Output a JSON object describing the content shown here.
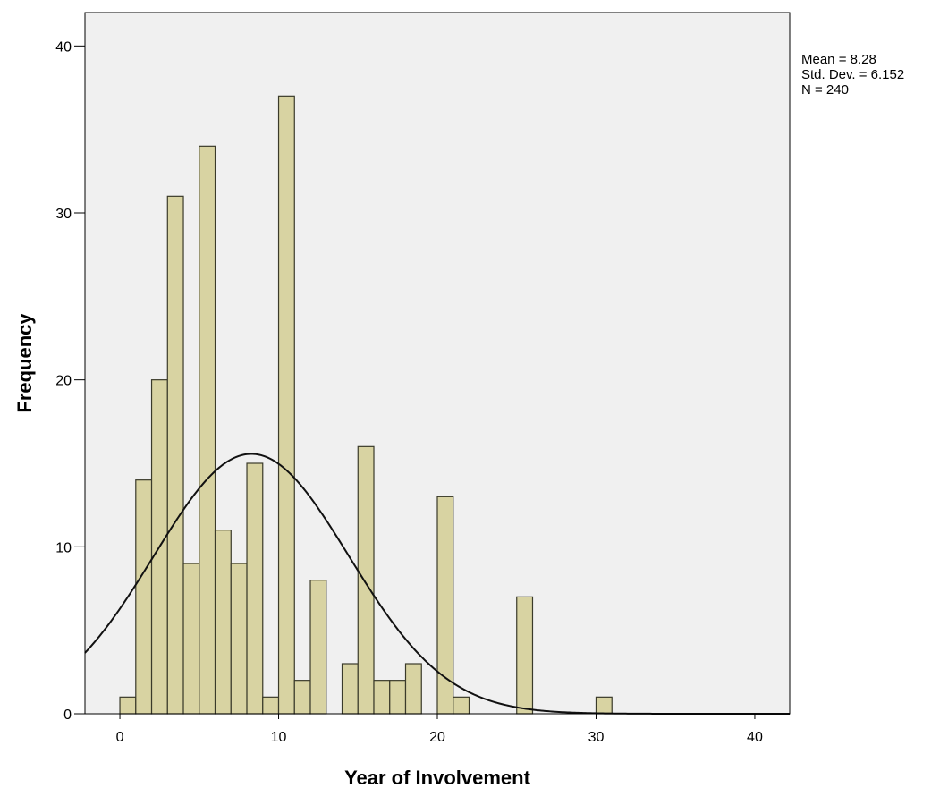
{
  "chart_data": {
    "type": "bar",
    "subtype": "histogram",
    "xlabel": "Year of Involvement",
    "ylabel": "Frequency",
    "xlim": [
      -2.2,
      42.2
    ],
    "ylim": [
      0,
      42
    ],
    "x_ticks": [
      0,
      10,
      20,
      30,
      40
    ],
    "y_ticks": [
      0,
      10,
      20,
      30,
      40
    ],
    "bin_width": 1,
    "bins": [
      {
        "start": 0,
        "value": 1
      },
      {
        "start": 1,
        "value": 14
      },
      {
        "start": 2,
        "value": 20
      },
      {
        "start": 3,
        "value": 31
      },
      {
        "start": 4,
        "value": 9
      },
      {
        "start": 5,
        "value": 34
      },
      {
        "start": 6,
        "value": 11
      },
      {
        "start": 7,
        "value": 9
      },
      {
        "start": 8,
        "value": 15
      },
      {
        "start": 9,
        "value": 1
      },
      {
        "start": 10,
        "value": 37
      },
      {
        "start": 11,
        "value": 2
      },
      {
        "start": 12,
        "value": 8
      },
      {
        "start": 14,
        "value": 3
      },
      {
        "start": 15,
        "value": 16
      },
      {
        "start": 16,
        "value": 2
      },
      {
        "start": 17,
        "value": 2
      },
      {
        "start": 18,
        "value": 3
      },
      {
        "start": 20,
        "value": 13
      },
      {
        "start": 21,
        "value": 1
      },
      {
        "start": 25,
        "value": 7
      },
      {
        "start": 30,
        "value": 1
      }
    ],
    "normal_curve": {
      "mean": 8.28,
      "std_dev": 6.152,
      "n": 240
    },
    "legend_position": "top-right, outside plot",
    "grid": false,
    "colors": {
      "plot_background": "#f0f0f0",
      "bar_fill": "#d8d3a2",
      "bar_stroke": "#3a3a2a",
      "curve": "#111111"
    }
  },
  "stats": {
    "mean": "Mean = 8.28",
    "std_dev": "Std. Dev. = 6.152",
    "n": "N = 240"
  }
}
